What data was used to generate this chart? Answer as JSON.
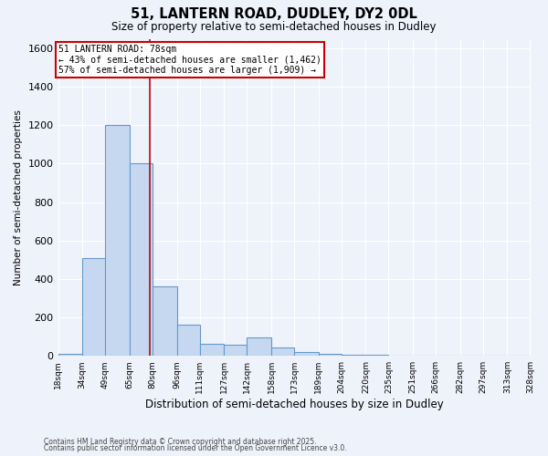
{
  "title1": "51, LANTERN ROAD, DUDLEY, DY2 0DL",
  "title2": "Size of property relative to semi-detached houses in Dudley",
  "xlabel": "Distribution of semi-detached houses by size in Dudley",
  "ylabel": "Number of semi-detached properties",
  "footer1": "Contains HM Land Registry data © Crown copyright and database right 2025.",
  "footer2": "Contains public sector information licensed under the Open Government Licence v3.0.",
  "bins": [
    18,
    34,
    49,
    65,
    80,
    96,
    111,
    127,
    142,
    158,
    173,
    189,
    204,
    220,
    235,
    251,
    266,
    282,
    297,
    313,
    328
  ],
  "bin_labels": [
    "18sqm",
    "34sqm",
    "49sqm",
    "65sqm",
    "80sqm",
    "96sqm",
    "111sqm",
    "127sqm",
    "142sqm",
    "158sqm",
    "173sqm",
    "189sqm",
    "204sqm",
    "220sqm",
    "235sqm",
    "251sqm",
    "266sqm",
    "282sqm",
    "297sqm",
    "313sqm",
    "328sqm"
  ],
  "values": [
    10,
    510,
    1200,
    1000,
    360,
    160,
    65,
    60,
    95,
    45,
    20,
    10,
    5,
    5,
    3,
    2,
    1,
    1,
    1,
    1
  ],
  "bar_color": "#c5d8f0",
  "bar_edge_color": "#6699cc",
  "vline_x": 78,
  "vline_color": "#cc0000",
  "ylim": [
    0,
    1650
  ],
  "yticks": [
    0,
    200,
    400,
    600,
    800,
    1000,
    1200,
    1400,
    1600
  ],
  "annotation_title": "51 LANTERN ROAD: 78sqm",
  "annotation_line1": "← 43% of semi-detached houses are smaller (1,462)",
  "annotation_line2": "57% of semi-detached houses are larger (1,909) →",
  "annotation_box_color": "#ffffff",
  "annotation_box_edge_color": "#cc0000",
  "bg_color": "#eef2fb",
  "grid_color": "#ffffff",
  "figwidth": 6.0,
  "figheight": 5.0,
  "dpi": 100
}
